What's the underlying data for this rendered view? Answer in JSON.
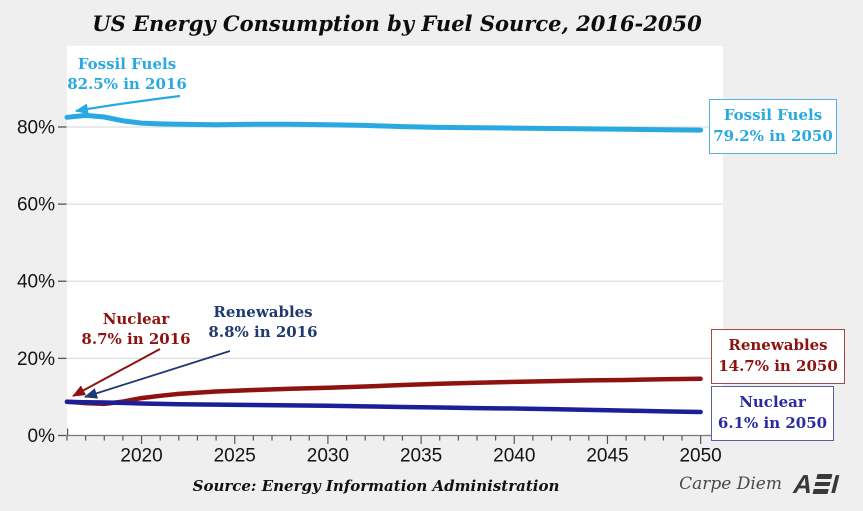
{
  "title": "US Energy Consumption by Fuel Source, 2016-2050",
  "source_note": "Source: Energy Information Administration",
  "branding": {
    "carpe_diem": "Carpe Diem",
    "aei_first": "A",
    "aei_last": "I"
  },
  "colors": {
    "background": "#EFEFEF",
    "plot_background": "#FFFFFF",
    "gridline": "#DEDEDE",
    "axis": "#777777",
    "tick": "#555555",
    "tick_label": "#141414",
    "fossil": "#29A9E1",
    "renewables": "#8E1310",
    "nuclear": "#1D1F99",
    "nuclear_2016_label": "#8E1310",
    "renewables_2016_label": "#1F3A70",
    "nuclear_2050_box_text": "#2A2AA2",
    "fossil_2050_box_border": "#53B1E6",
    "renewables_2050_box_border": "#A54848",
    "nuclear_2050_box_border": "#5560AC",
    "carpe_diem_text": "#4A4A4A",
    "aei_logo": "#39393B"
  },
  "annotations": {
    "fossil_2016": {
      "line1": "Fossil Fuels",
      "line2": "82.5% in 2016"
    },
    "fossil_2050": {
      "line1": "Fossil Fuels",
      "line2": "79.2% in 2050"
    },
    "nuclear_2016": {
      "line1": "Nuclear",
      "line2": "8.7% in 2016"
    },
    "renewables_2016": {
      "line1": "Renewables",
      "line2": "8.8% in 2016"
    },
    "renewables_2050": {
      "line1": "Renewables",
      "line2": "14.7% in 2050"
    },
    "nuclear_2050": {
      "line1": "Nuclear",
      "line2": "6.1% in 2050"
    }
  },
  "chart_data": {
    "type": "line",
    "title": "US Energy Consumption by Fuel Source, 2016-2050",
    "xlabel": "",
    "ylabel": "",
    "x": [
      2016,
      2017,
      2018,
      2019,
      2020,
      2021,
      2022,
      2024,
      2026,
      2028,
      2030,
      2032,
      2034,
      2036,
      2038,
      2040,
      2042,
      2044,
      2046,
      2048,
      2050
    ],
    "series": [
      {
        "name": "Fossil Fuels",
        "color": "#29A9E1",
        "start_label": "82.5% in 2016",
        "end_label": "79.2% in 2050",
        "values": [
          82.5,
          83.0,
          82.6,
          81.6,
          81.0,
          80.8,
          80.7,
          80.6,
          80.7,
          80.7,
          80.6,
          80.4,
          80.1,
          79.9,
          79.8,
          79.7,
          79.6,
          79.5,
          79.4,
          79.3,
          79.2
        ]
      },
      {
        "name": "Renewables",
        "color": "#8E1310",
        "start_label": "8.8% in 2016",
        "end_label": "14.7% in 2050",
        "values": [
          8.8,
          8.4,
          8.2,
          8.8,
          9.7,
          10.3,
          10.8,
          11.4,
          11.8,
          12.1,
          12.4,
          12.7,
          13.1,
          13.4,
          13.7,
          13.9,
          14.1,
          14.3,
          14.4,
          14.6,
          14.7
        ]
      },
      {
        "name": "Nuclear",
        "color": "#1D1F99",
        "start_label": "8.7% in 2016",
        "end_label": "6.1% in 2050",
        "values": [
          8.7,
          8.6,
          8.55,
          8.45,
          8.3,
          8.2,
          8.1,
          8.0,
          7.9,
          7.8,
          7.7,
          7.55,
          7.4,
          7.25,
          7.1,
          7.0,
          6.85,
          6.65,
          6.45,
          6.25,
          6.1
        ]
      }
    ],
    "x_tick_years_labeled": [
      2020,
      2025,
      2030,
      2035,
      2040,
      2045,
      2050
    ],
    "x_tick_labels": [
      "2020",
      "2025",
      "2030",
      "2035",
      "2040",
      "2045",
      "2050"
    ],
    "x_minor_tick_interval_years": 1,
    "y_ticks": [
      0,
      20,
      40,
      60,
      80
    ],
    "y_tick_labels": [
      "0%",
      "20%",
      "40%",
      "60%",
      "80%"
    ],
    "xlim": [
      2016,
      2051.2
    ],
    "ylim": [
      0,
      101
    ],
    "grid": "horizontal",
    "legend": "direct-line-labels"
  }
}
